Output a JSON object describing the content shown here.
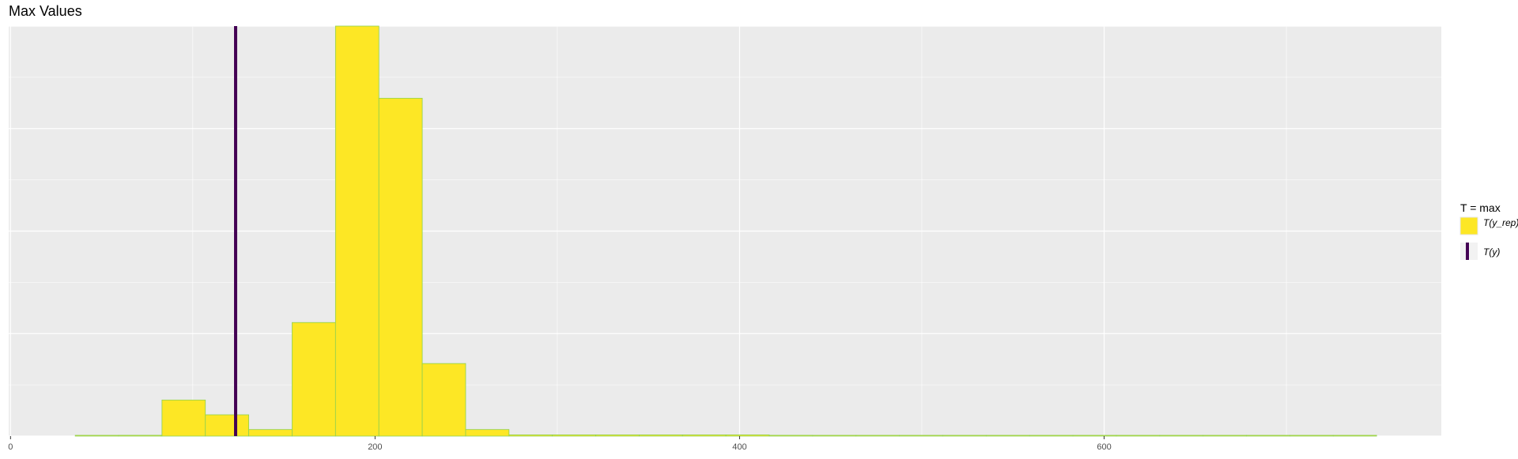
{
  "chart_data": {
    "type": "bar",
    "title": "Max Values",
    "xlabel": "",
    "ylabel": "",
    "xlim": [
      -1,
      785
    ],
    "ylim": [
      0,
      1
    ],
    "grid": true,
    "legend_position": "right",
    "x_ticks": [
      0,
      200,
      400,
      600
    ],
    "x_tick_labels": [
      "0",
      "200",
      "400",
      "600"
    ],
    "bin_width": 23.8,
    "bins": [
      {
        "start": 35.5,
        "end": 59.3,
        "value": 0.001
      },
      {
        "start": 59.3,
        "end": 83.1,
        "value": 0.002
      },
      {
        "start": 83.1,
        "end": 106.9,
        "value": 0.088
      },
      {
        "start": 106.9,
        "end": 130.7,
        "value": 0.052
      },
      {
        "start": 130.7,
        "end": 154.5,
        "value": 0.016
      },
      {
        "start": 154.5,
        "end": 178.3,
        "value": 0.277
      },
      {
        "start": 178.3,
        "end": 202.1,
        "value": 1.0
      },
      {
        "start": 202.1,
        "end": 225.9,
        "value": 0.824
      },
      {
        "start": 225.9,
        "end": 249.7,
        "value": 0.177
      },
      {
        "start": 249.7,
        "end": 273.5,
        "value": 0.016
      },
      {
        "start": 273.5,
        "end": 297.3,
        "value": 0.003
      },
      {
        "start": 297.3,
        "end": 321.1,
        "value": 0.003
      },
      {
        "start": 321.1,
        "end": 344.9,
        "value": 0.003
      },
      {
        "start": 344.9,
        "end": 368.7,
        "value": 0.003
      },
      {
        "start": 368.7,
        "end": 392.5,
        "value": 0.003
      },
      {
        "start": 392.5,
        "end": 416.3,
        "value": 0.003
      },
      {
        "start": 416.3,
        "end": 440.1,
        "value": 0.002
      },
      {
        "start": 440.1,
        "end": 463.9,
        "value": 0.001
      },
      {
        "start": 463.9,
        "end": 487.7,
        "value": 0.001
      },
      {
        "start": 487.7,
        "end": 511.5,
        "value": 0.001
      },
      {
        "start": 511.5,
        "end": 535.3,
        "value": 0.001
      },
      {
        "start": 535.3,
        "end": 559.1,
        "value": 0.0005
      },
      {
        "start": 559.1,
        "end": 582.9,
        "value": 0.0005
      },
      {
        "start": 582.9,
        "end": 606.7,
        "value": 0.0003
      },
      {
        "start": 606.7,
        "end": 630.5,
        "value": 0.0003
      },
      {
        "start": 630.5,
        "end": 654.3,
        "value": 0.0002
      },
      {
        "start": 654.3,
        "end": 678.1,
        "value": 0.0002
      },
      {
        "start": 678.1,
        "end": 701.9,
        "value": 0.0002
      },
      {
        "start": 701.9,
        "end": 725.7,
        "value": 0.0001
      },
      {
        "start": 725.7,
        "end": 749.5,
        "value": 0.0001
      }
    ],
    "observed_value": 123.5,
    "legend": {
      "title": "T = max",
      "entries": [
        {
          "label": "T(y_rep)",
          "kind": "fill",
          "fill": "#fde725",
          "stroke": "#9ad04a"
        },
        {
          "label": "T(y)",
          "kind": "line",
          "color": "#440154"
        }
      ]
    },
    "colors": {
      "panel_bg": "#ebebeb",
      "grid": "#ffffff",
      "bar_fill": "#fde725",
      "bar_stroke": "#8fd14f",
      "vline": "#440154",
      "tick_text": "#4d4d4d",
      "title_text": "#000000"
    }
  }
}
